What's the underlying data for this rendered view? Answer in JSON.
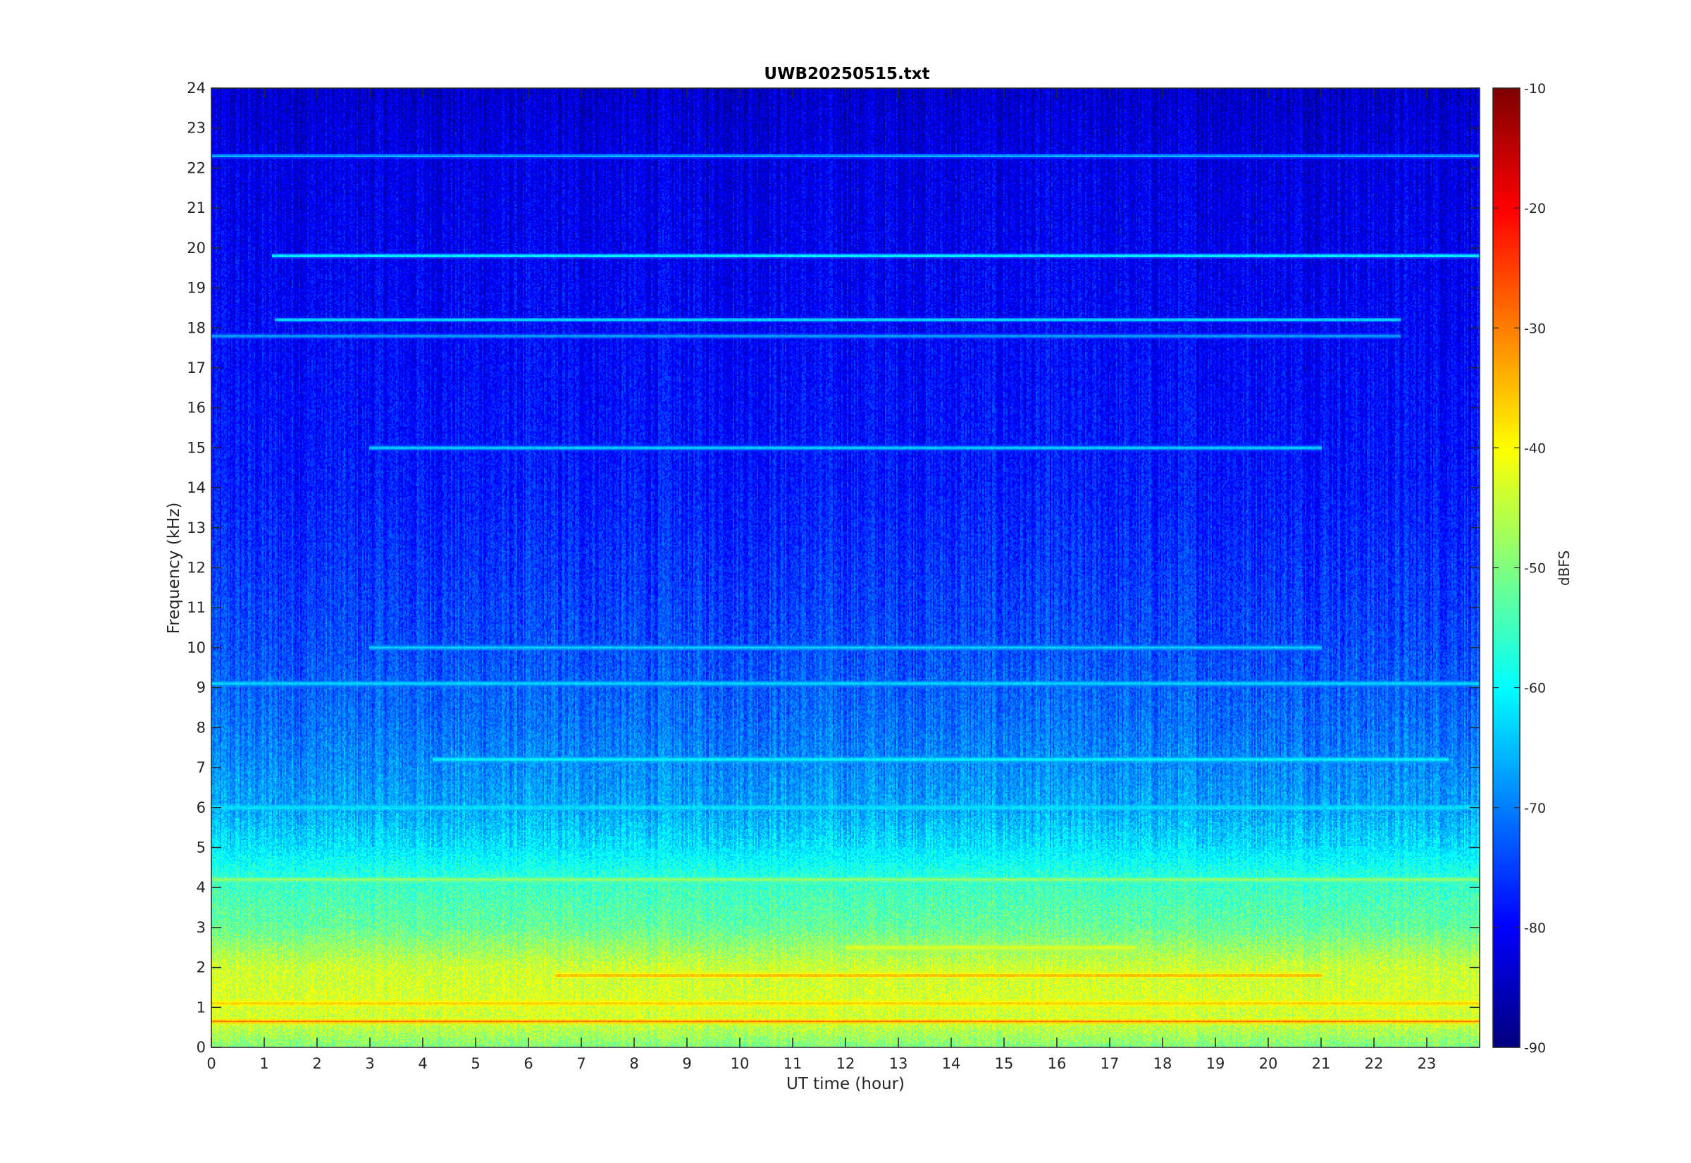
{
  "chart_data": {
    "type": "heatmap",
    "title": "UWB20250515.txt",
    "xlabel": "UT time (hour)",
    "ylabel": "Frequency (kHz)",
    "xlim": [
      0,
      24
    ],
    "ylim": [
      0,
      24
    ],
    "x_ticks": [
      "0",
      "1",
      "2",
      "3",
      "4",
      "5",
      "6",
      "7",
      "8",
      "9",
      "10",
      "11",
      "12",
      "13",
      "14",
      "15",
      "16",
      "17",
      "18",
      "19",
      "20",
      "21",
      "22",
      "23"
    ],
    "y_ticks": [
      "0",
      "1",
      "2",
      "3",
      "4",
      "5",
      "6",
      "7",
      "8",
      "9",
      "10",
      "11",
      "12",
      "13",
      "14",
      "15",
      "16",
      "17",
      "18",
      "19",
      "20",
      "21",
      "22",
      "23",
      "24"
    ],
    "colormap": "jet",
    "colorbar": {
      "label": "dBFS",
      "range": [
        -90,
        -10
      ],
      "ticks": [
        "-90",
        "-80",
        "-70",
        "-60",
        "-50",
        "-40",
        "-30",
        "-20",
        "-10"
      ]
    },
    "background_level_profile": [
      {
        "freq_khz": 0.0,
        "dbfs": -50
      },
      {
        "freq_khz": 0.5,
        "dbfs": -45
      },
      {
        "freq_khz": 1.0,
        "dbfs": -43
      },
      {
        "freq_khz": 2.0,
        "dbfs": -44
      },
      {
        "freq_khz": 3.0,
        "dbfs": -52
      },
      {
        "freq_khz": 4.0,
        "dbfs": -55
      },
      {
        "freq_khz": 5.0,
        "dbfs": -62
      },
      {
        "freq_khz": 6.0,
        "dbfs": -67
      },
      {
        "freq_khz": 8.0,
        "dbfs": -71
      },
      {
        "freq_khz": 10.0,
        "dbfs": -74
      },
      {
        "freq_khz": 14.0,
        "dbfs": -78
      },
      {
        "freq_khz": 18.0,
        "dbfs": -80
      },
      {
        "freq_khz": 22.0,
        "dbfs": -82
      },
      {
        "freq_khz": 24.0,
        "dbfs": -84
      }
    ],
    "tonal_lines": [
      {
        "freq_khz": 0.65,
        "dbfs": -30,
        "t_start": 0,
        "t_end": 24
      },
      {
        "freq_khz": 1.1,
        "dbfs": -36,
        "t_start": 0,
        "t_end": 24
      },
      {
        "freq_khz": 1.8,
        "dbfs": -34,
        "t_start": 6.5,
        "t_end": 21
      },
      {
        "freq_khz": 2.5,
        "dbfs": -42,
        "t_start": 12,
        "t_end": 17.5
      },
      {
        "freq_khz": 4.2,
        "dbfs": -48,
        "t_start": 0,
        "t_end": 24
      },
      {
        "freq_khz": 6.0,
        "dbfs": -62,
        "t_start": 0,
        "t_end": 24
      },
      {
        "freq_khz": 7.2,
        "dbfs": -60,
        "t_start": 4.2,
        "t_end": 23.4
      },
      {
        "freq_khz": 9.1,
        "dbfs": -62,
        "t_start": 0,
        "t_end": 24
      },
      {
        "freq_khz": 10.0,
        "dbfs": -63,
        "t_start": 3,
        "t_end": 21
      },
      {
        "freq_khz": 15.0,
        "dbfs": -62,
        "t_start": 3,
        "t_end": 21
      },
      {
        "freq_khz": 17.8,
        "dbfs": -66,
        "t_start": 0,
        "t_end": 22.5
      },
      {
        "freq_khz": 18.2,
        "dbfs": -62,
        "t_start": 1.2,
        "t_end": 22.5
      },
      {
        "freq_khz": 19.8,
        "dbfs": -58,
        "t_start": 1.15,
        "t_end": 24
      },
      {
        "freq_khz": 22.3,
        "dbfs": -64,
        "t_start": 0,
        "t_end": 24
      }
    ]
  }
}
